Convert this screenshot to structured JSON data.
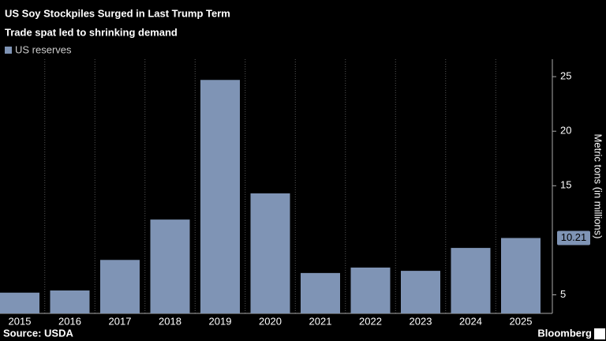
{
  "chart_data": {
    "type": "bar",
    "title": "US Soy Stockpiles Surged in Last Trump Term",
    "subtitle": "Trade spat led to shrinking demand",
    "legend": "US reserves",
    "y_axis_label": "Metric tons (in millions)",
    "source": "Source: USDA",
    "brand": "Bloomberg",
    "categories": [
      "2015",
      "2016",
      "2017",
      "2018",
      "2019",
      "2020",
      "2021",
      "2022",
      "2023",
      "2024",
      "2025"
    ],
    "values": [
      5.2,
      5.4,
      8.2,
      11.9,
      24.7,
      14.3,
      7.0,
      7.5,
      7.2,
      9.3,
      10.21
    ],
    "color": "#7f94b5",
    "ylim": [
      3.3,
      26.6
    ],
    "yticks": [
      5,
      15,
      20,
      25
    ]
  }
}
